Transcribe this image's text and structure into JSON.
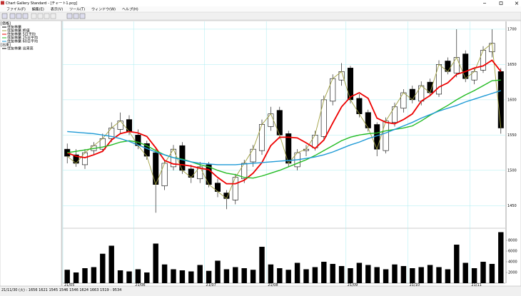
{
  "window": {
    "title": "Chart Gallery Standard - [チャート1.pcg]"
  },
  "menu": [
    "ファイル(F)",
    "編集(E)",
    "表示(V)",
    "ツール(T)",
    "ウィンドウ(W)",
    "ヘルプ(H)"
  ],
  "legend": {
    "price_header": "[価格]",
    "volume_header": "[出来]"
  },
  "status": "21/11/30 (火) : 1656 1621 1545 1546 1546 1624 1663 1519 : 9534",
  "chart_data": {
    "type": "candlestick",
    "candle_name": "住友林業",
    "candle_color": "#000000",
    "close_name": "住友林業 終値",
    "close_color": "#a0a040",
    "volume_name": "住友林業 出来高",
    "volume_color": "#000000",
    "categories": [
      "21/05",
      null,
      null,
      null,
      null,
      null,
      null,
      null,
      "21/06",
      null,
      null,
      null,
      null,
      null,
      null,
      null,
      "21/07",
      null,
      null,
      null,
      null,
      null,
      null,
      "21/08",
      null,
      null,
      null,
      null,
      null,
      null,
      null,
      null,
      "21/09",
      null,
      null,
      null,
      null,
      null,
      null,
      "21/10",
      null,
      null,
      null,
      null,
      null,
      null,
      "21/11",
      null,
      null,
      null
    ],
    "open": [
      1530,
      1522,
      1508,
      1528,
      1530,
      1545,
      1558,
      1572,
      1550,
      1538,
      1525,
      1478,
      1505,
      1535,
      1502,
      1488,
      1508,
      1482,
      1468,
      1458,
      1488,
      1512,
      1528,
      1562,
      1585,
      1552,
      1505,
      1528,
      1532,
      1548,
      1598,
      1628,
      1645,
      1602,
      1582,
      1565,
      1528,
      1568,
      1588,
      1615,
      1598,
      1625,
      1608,
      1655,
      1638,
      1665,
      1628,
      1642,
      1668,
      1640
    ],
    "high": [
      1538,
      1530,
      1530,
      1540,
      1552,
      1568,
      1582,
      1578,
      1558,
      1542,
      1530,
      1515,
      1536,
      1540,
      1508,
      1512,
      1512,
      1488,
      1472,
      1495,
      1515,
      1536,
      1572,
      1590,
      1590,
      1556,
      1530,
      1536,
      1556,
      1606,
      1636,
      1652,
      1648,
      1608,
      1586,
      1568,
      1575,
      1596,
      1615,
      1620,
      1626,
      1630,
      1656,
      1660,
      1700,
      1670,
      1645,
      1676,
      1700,
      1645
    ],
    "low": [
      1510,
      1505,
      1502,
      1522,
      1526,
      1540,
      1552,
      1550,
      1530,
      1515,
      1440,
      1472,
      1500,
      1495,
      1482,
      1482,
      1476,
      1462,
      1445,
      1452,
      1482,
      1505,
      1522,
      1556,
      1545,
      1505,
      1500,
      1520,
      1528,
      1542,
      1592,
      1620,
      1595,
      1575,
      1555,
      1520,
      1524,
      1562,
      1582,
      1595,
      1592,
      1605,
      1604,
      1636,
      1632,
      1625,
      1622,
      1638,
      1660,
      1552
    ],
    "close": [
      1520,
      1510,
      1525,
      1535,
      1545,
      1560,
      1570,
      1555,
      1535,
      1520,
      1480,
      1510,
      1530,
      1500,
      1490,
      1505,
      1480,
      1470,
      1460,
      1490,
      1510,
      1530,
      1565,
      1580,
      1550,
      1510,
      1525,
      1530,
      1550,
      1600,
      1630,
      1640,
      1600,
      1580,
      1560,
      1530,
      1570,
      1590,
      1610,
      1600,
      1620,
      1610,
      1650,
      1640,
      1660,
      1630,
      1640,
      1670,
      1680,
      1560
    ],
    "volume": [
      2500,
      2000,
      2800,
      3000,
      5500,
      7000,
      2400,
      2200,
      2600,
      2000,
      7400,
      3500,
      2600,
      2400,
      2200,
      3400,
      2300,
      4200,
      2600,
      3000,
      2800,
      2500,
      6800,
      3500,
      2800,
      2500,
      3800,
      2600,
      3000,
      4000,
      3600,
      3200,
      2800,
      3800,
      3400,
      3000,
      2600,
      3500,
      3200,
      2800,
      3000,
      3400,
      3000,
      2600,
      7200,
      3800,
      2800,
      4000,
      3600,
      9534
    ],
    "series": [
      {
        "name": "住友林業 5日平均",
        "color": "#ee0000",
        "values": [
          1525,
          1520,
          1518,
          1522,
          1527,
          1543,
          1552,
          1555,
          1553,
          1548,
          1532,
          1514,
          1509,
          1508,
          1506,
          1503,
          1501,
          1490,
          1481,
          1481,
          1486,
          1496,
          1511,
          1535,
          1547,
          1547,
          1546,
          1539,
          1531,
          1543,
          1567,
          1590,
          1604,
          1610,
          1602,
          1574,
          1568,
          1566,
          1572,
          1580,
          1598,
          1606,
          1618,
          1624,
          1636,
          1640,
          1645,
          1648,
          1656,
          1640
        ]
      },
      {
        "name": "住友林業 25日平均",
        "color": "#22bb22",
        "values": [
          1525,
          1527,
          1529,
          1531,
          1533,
          1536,
          1540,
          1542,
          1540,
          1535,
          1528,
          1522,
          1518,
          1516,
          1512,
          1508,
          1505,
          1500,
          1496,
          1494,
          1490,
          1489,
          1492,
          1496,
          1500,
          1505,
          1510,
          1515,
          1521,
          1528,
          1535,
          1542,
          1547,
          1550,
          1552,
          1553,
          1556,
          1558,
          1560,
          1563,
          1570,
          1578,
          1585,
          1592,
          1600,
          1607,
          1613,
          1620,
          1627,
          1628
        ]
      },
      {
        "name": "住友林業 60日平均",
        "color": "#1e9ad6",
        "values": [
          1555,
          1554,
          1553,
          1552,
          1550,
          1548,
          1545,
          1541,
          1536,
          1531,
          1526,
          1522,
          1518,
          1515,
          1512,
          1510,
          1509,
          1508,
          1508,
          1508,
          1509,
          1510,
          1511,
          1512,
          1513,
          1514,
          1515,
          1517,
          1519,
          1522,
          1526,
          1531,
          1536,
          1540,
          1545,
          1549,
          1553,
          1558,
          1563,
          1568,
          1574,
          1579,
          1584,
          1588,
          1592,
          1597,
          1601,
          1605,
          1609,
          1613
        ]
      }
    ],
    "ylim": [
      1420,
      1705
    ],
    "yticks": [
      1450,
      1500,
      1550,
      1600,
      1650,
      1700
    ],
    "volume_ylim": [
      0,
      10000
    ],
    "volume_ticks": [
      2000,
      4000,
      6000,
      8000
    ],
    "grid": true,
    "grid_color": "#a8ecf0"
  }
}
